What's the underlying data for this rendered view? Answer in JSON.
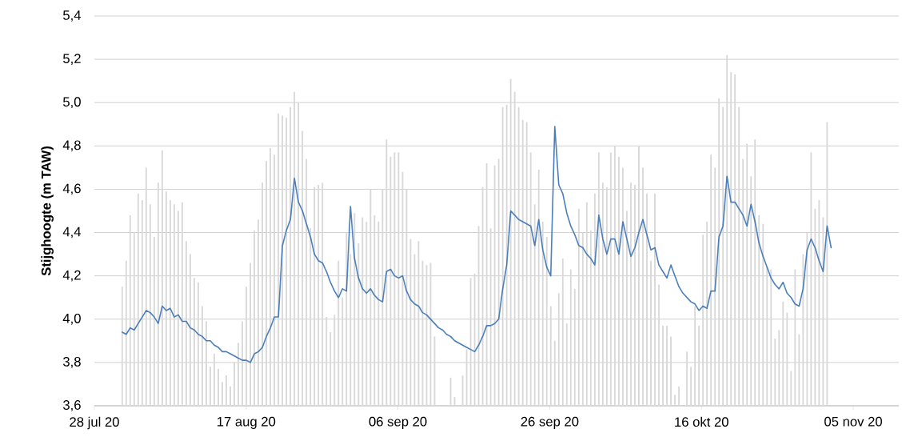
{
  "chart_data": {
    "type": "line",
    "ylabel": "Stijghoogte (m TAW)",
    "grid": "y",
    "xlim": [
      "2020-07-28",
      "2020-11-11"
    ],
    "xticks": [
      {
        "value": "2020-07-28",
        "label": "28 jul 20"
      },
      {
        "value": "2020-08-17",
        "label": "17 aug 20"
      },
      {
        "value": "2020-09-06",
        "label": "06 sep 20"
      },
      {
        "value": "2020-09-26",
        "label": "26 sep 20"
      },
      {
        "value": "2020-10-16",
        "label": "16 okt 20"
      },
      {
        "value": "2020-11-05",
        "label": "05 nov 20"
      }
    ],
    "ylim": [
      3.6,
      5.4
    ],
    "yticks": [
      {
        "value": 3.6,
        "label": "3,6"
      },
      {
        "value": 3.8,
        "label": "3,8"
      },
      {
        "value": 4.0,
        "label": "4,0"
      },
      {
        "value": 4.2,
        "label": "4,2"
      },
      {
        "value": 4.4,
        "label": "4,4"
      },
      {
        "value": 4.6,
        "label": "4,6"
      },
      {
        "value": 4.8,
        "label": "4,8"
      },
      {
        "value": 5.0,
        "label": "5,0"
      },
      {
        "value": 5.2,
        "label": "5,2"
      },
      {
        "value": 5.4,
        "label": "5,4"
      }
    ],
    "x": [
      "2020-07-31T16:00",
      "2020-08-01T04:40",
      "2020-08-01T17:20",
      "2020-08-02T06:00",
      "2020-08-02T18:40",
      "2020-08-03T07:20",
      "2020-08-03T20:00",
      "2020-08-04T08:40",
      "2020-08-04T21:20",
      "2020-08-05T10:00",
      "2020-08-05T22:40",
      "2020-08-06T11:20",
      "2020-08-07T00:00",
      "2020-08-07T12:40",
      "2020-08-08T01:20",
      "2020-08-08T14:00",
      "2020-08-09T02:40",
      "2020-08-09T15:20",
      "2020-08-10T04:00",
      "2020-08-10T16:40",
      "2020-08-11T05:20",
      "2020-08-11T18:00",
      "2020-08-12T06:40",
      "2020-08-12T19:20",
      "2020-08-13T08:00",
      "2020-08-13T20:40",
      "2020-08-14T09:20",
      "2020-08-14T22:00",
      "2020-08-15T10:40",
      "2020-08-15T23:20",
      "2020-08-16T12:00",
      "2020-08-17T00:40",
      "2020-08-17T13:20",
      "2020-08-18T02:00",
      "2020-08-18T14:40",
      "2020-08-19T03:20",
      "2020-08-19T16:00",
      "2020-08-20T04:40",
      "2020-08-20T17:20",
      "2020-08-21T06:00",
      "2020-08-21T18:40",
      "2020-08-22T07:20",
      "2020-08-22T20:00",
      "2020-08-23T08:40",
      "2020-08-23T21:20",
      "2020-08-24T10:00",
      "2020-08-24T22:40",
      "2020-08-25T11:20",
      "2020-08-26T00:00",
      "2020-08-26T12:40",
      "2020-08-27T01:20",
      "2020-08-27T14:00",
      "2020-08-28T02:40",
      "2020-08-28T15:20",
      "2020-08-29T04:00",
      "2020-08-29T16:40",
      "2020-08-30T05:20",
      "2020-08-30T18:00",
      "2020-08-31T06:40",
      "2020-08-31T19:20",
      "2020-09-01T08:00",
      "2020-09-01T20:40",
      "2020-09-02T09:20",
      "2020-09-02T22:00",
      "2020-09-03T10:40",
      "2020-09-03T23:20",
      "2020-09-04T12:00",
      "2020-09-05T00:40",
      "2020-09-05T13:20",
      "2020-09-06T02:00",
      "2020-09-06T14:40",
      "2020-09-07T03:20",
      "2020-09-07T16:00",
      "2020-09-08T04:40",
      "2020-09-08T17:20",
      "2020-09-09T06:00",
      "2020-09-09T18:40",
      "2020-09-10T07:20",
      "2020-09-10T20:00",
      "2020-09-11T08:40",
      "2020-09-11T21:20",
      "2020-09-12T10:00",
      "2020-09-12T22:40",
      "2020-09-13T11:20",
      "2020-09-14T00:00",
      "2020-09-14T12:40",
      "2020-09-15T01:20",
      "2020-09-15T14:00",
      "2020-09-16T02:40",
      "2020-09-16T15:20",
      "2020-09-17T04:00",
      "2020-09-17T16:40",
      "2020-09-18T05:20",
      "2020-09-18T18:00",
      "2020-09-19T06:40",
      "2020-09-19T19:20",
      "2020-09-20T08:00",
      "2020-09-20T20:40",
      "2020-09-21T09:20",
      "2020-09-21T22:00",
      "2020-09-22T10:40",
      "2020-09-22T23:20",
      "2020-09-23T12:00",
      "2020-09-24T00:40",
      "2020-09-24T13:20",
      "2020-09-25T02:00",
      "2020-09-25T14:40",
      "2020-09-26T03:20",
      "2020-09-26T16:00",
      "2020-09-27T04:40",
      "2020-09-27T17:20",
      "2020-09-28T06:00",
      "2020-09-28T18:40",
      "2020-09-29T07:20",
      "2020-09-29T20:00",
      "2020-09-30T08:40",
      "2020-09-30T21:20",
      "2020-10-01T10:00",
      "2020-10-01T22:40",
      "2020-10-02T11:20",
      "2020-10-03T00:00",
      "2020-10-03T12:40",
      "2020-10-04T01:20",
      "2020-10-04T14:00",
      "2020-10-05T02:40",
      "2020-10-05T15:20",
      "2020-10-06T04:00",
      "2020-10-06T16:40",
      "2020-10-07T05:20",
      "2020-10-07T18:00",
      "2020-10-08T06:40",
      "2020-10-08T19:20",
      "2020-10-09T08:00",
      "2020-10-09T20:40",
      "2020-10-10T09:20",
      "2020-10-10T22:00",
      "2020-10-11T10:40",
      "2020-10-11T23:20",
      "2020-10-12T12:00",
      "2020-10-13T00:40",
      "2020-10-13T13:20",
      "2020-10-14T02:00",
      "2020-10-14T14:40",
      "2020-10-15T03:20",
      "2020-10-15T16:00",
      "2020-10-16T04:40",
      "2020-10-16T17:20",
      "2020-10-17T06:00",
      "2020-10-17T18:40",
      "2020-10-18T07:20",
      "2020-10-18T20:00",
      "2020-10-19T08:40",
      "2020-10-19T21:20",
      "2020-10-20T10:00",
      "2020-10-20T22:40",
      "2020-10-21T11:20",
      "2020-10-22T00:00",
      "2020-10-22T12:40",
      "2020-10-23T01:20",
      "2020-10-23T14:00",
      "2020-10-24T02:40",
      "2020-10-24T15:20",
      "2020-10-25T04:00",
      "2020-10-25T16:40",
      "2020-10-26T05:20",
      "2020-10-26T18:00",
      "2020-10-27T06:40",
      "2020-10-27T19:20",
      "2020-10-28T08:00",
      "2020-10-28T20:40",
      "2020-10-29T09:20",
      "2020-10-29T22:00",
      "2020-10-30T10:40",
      "2020-10-30T23:20",
      "2020-10-31T12:00",
      "2020-11-01T00:40",
      "2020-11-01T13:20",
      "2020-11-02T02:00"
    ],
    "series": [
      {
        "type": "bar",
        "color": "#d9d9d9",
        "values": [
          4.15,
          4.27,
          4.48,
          4.4,
          4.58,
          4.55,
          4.7,
          4.53,
          4.38,
          4.63,
          4.78,
          4.59,
          4.55,
          4.53,
          4.5,
          4.54,
          4.36,
          4.3,
          4.19,
          4.17,
          4.06,
          3.99,
          3.78,
          3.84,
          3.77,
          3.71,
          3.74,
          3.69,
          3.8,
          3.89,
          3.99,
          4.15,
          4.26,
          4.41,
          4.46,
          4.63,
          4.73,
          4.79,
          4.76,
          4.95,
          4.94,
          4.93,
          4.98,
          5.05,
          5.0,
          4.87,
          4.74,
          4.42,
          4.61,
          4.62,
          4.63,
          4.01,
          3.94,
          4.02,
          4.27,
          4.1,
          4.4,
          4.3,
          4.49,
          4.35,
          4.47,
          4.45,
          4.6,
          4.48,
          4.45,
          4.6,
          4.83,
          4.75,
          4.77,
          4.77,
          4.68,
          4.6,
          4.37,
          4.3,
          4.36,
          4.27,
          4.25,
          4.26,
          3.92,
          null,
          null,
          null,
          3.73,
          3.64,
          null,
          3.74,
          3.86,
          4.19,
          4.21,
          4.43,
          4.61,
          4.72,
          4.42,
          4.71,
          4.74,
          4.98,
          4.99,
          5.11,
          5.05,
          4.98,
          4.92,
          4.91,
          4.77,
          4.53,
          4.69,
          4.45,
          4.38,
          4.06,
          3.9,
          4.12,
          4.28,
          3.98,
          4.23,
          4.14,
          4.51,
          4.4,
          4.54,
          4.41,
          4.58,
          4.77,
          4.63,
          4.61,
          4.77,
          4.8,
          4.75,
          4.7,
          4.5,
          4.63,
          4.62,
          4.8,
          4.7,
          4.58,
          4.27,
          4.58,
          4.16,
          3.97,
          3.97,
          3.92,
          3.65,
          3.69,
          null,
          3.85,
          3.78,
          4.06,
          3.97,
          4.39,
          4.45,
          4.76,
          4.7,
          5.02,
          4.98,
          5.22,
          5.14,
          5.13,
          4.98,
          4.74,
          4.81,
          4.66,
          4.83,
          4.48,
          4.44,
          4.24,
          4.23,
          3.91,
          3.95,
          4.08,
          4.03,
          3.76,
          4.23,
          3.93,
          4.3,
          4.4,
          4.77,
          4.51,
          4.55,
          4.47,
          4.91,
          null
        ]
      },
      {
        "color": "#4a7ebb",
        "values": [
          3.94,
          3.93,
          3.96,
          3.95,
          3.98,
          4.01,
          4.04,
          4.03,
          4.01,
          3.98,
          4.06,
          4.04,
          4.05,
          4.01,
          4.02,
          3.99,
          3.99,
          3.96,
          3.95,
          3.93,
          3.92,
          3.9,
          3.9,
          3.88,
          3.87,
          3.85,
          3.85,
          3.84,
          3.83,
          3.82,
          3.81,
          3.81,
          3.8,
          3.84,
          3.85,
          3.87,
          3.92,
          3.96,
          4.01,
          4.01,
          4.34,
          4.41,
          4.46,
          4.65,
          4.54,
          4.5,
          4.44,
          4.38,
          4.3,
          4.27,
          4.26,
          4.22,
          4.17,
          4.13,
          4.1,
          4.14,
          4.13,
          4.52,
          4.28,
          4.19,
          4.14,
          4.12,
          4.14,
          4.11,
          4.09,
          4.08,
          4.22,
          4.23,
          4.2,
          4.19,
          4.2,
          4.13,
          4.09,
          4.07,
          4.06,
          4.03,
          4.02,
          4.0,
          3.98,
          3.96,
          3.95,
          3.93,
          3.92,
          3.9,
          3.89,
          3.88,
          3.87,
          3.86,
          3.85,
          3.88,
          3.92,
          3.97,
          3.97,
          3.98,
          4.0,
          4.14,
          4.25,
          4.5,
          4.48,
          4.46,
          4.45,
          4.44,
          4.43,
          4.34,
          4.46,
          4.32,
          4.24,
          4.2,
          4.89,
          4.62,
          4.58,
          4.49,
          4.43,
          4.39,
          4.34,
          4.33,
          4.3,
          4.28,
          4.25,
          4.48,
          4.37,
          4.3,
          4.37,
          4.37,
          4.3,
          4.45,
          4.37,
          4.29,
          4.33,
          4.4,
          4.46,
          4.39,
          4.32,
          4.33,
          4.25,
          4.22,
          4.19,
          4.25,
          4.2,
          4.15,
          4.12,
          4.1,
          4.08,
          4.07,
          4.04,
          4.06,
          4.05,
          4.13,
          4.13,
          4.38,
          4.43,
          4.66,
          4.54,
          4.54,
          4.51,
          4.48,
          4.43,
          4.53,
          4.45,
          4.35,
          4.29,
          4.24,
          4.19,
          4.16,
          4.14,
          4.17,
          4.12,
          4.1,
          4.07,
          4.06,
          4.14,
          4.32,
          4.37,
          4.33,
          4.27,
          4.22,
          4.43,
          4.33
        ]
      }
    ]
  }
}
